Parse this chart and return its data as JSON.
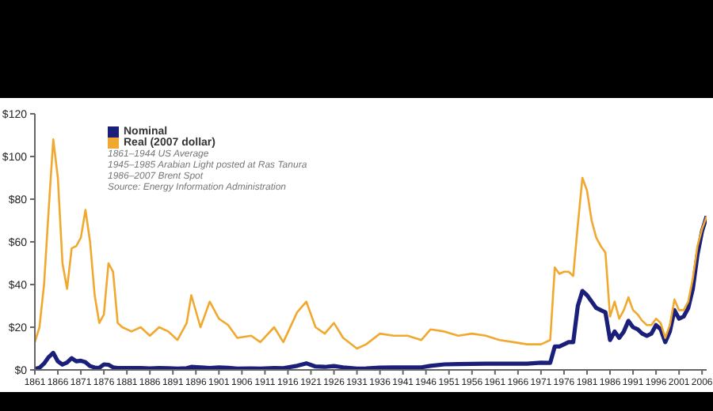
{
  "chart_data": {
    "type": "line",
    "x": [
      1861,
      1862,
      1863,
      1864,
      1865,
      1866,
      1867,
      1868,
      1869,
      1870,
      1871,
      1872,
      1873,
      1874,
      1875,
      1876,
      1877,
      1878,
      1879,
      1880,
      1882,
      1884,
      1886,
      1888,
      1890,
      1892,
      1894,
      1895,
      1897,
      1899,
      1901,
      1903,
      1905,
      1908,
      1910,
      1913,
      1915,
      1918,
      1920,
      1922,
      1924,
      1926,
      1928,
      1931,
      1933,
      1936,
      1939,
      1942,
      1945,
      1947,
      1950,
      1953,
      1956,
      1959,
      1962,
      1965,
      1968,
      1971,
      1973,
      1974,
      1975,
      1976,
      1977,
      1978,
      1979,
      1980,
      1981,
      1982,
      1983,
      1984,
      1985,
      1986,
      1987,
      1988,
      1989,
      1990,
      1991,
      1992,
      1993,
      1994,
      1995,
      1996,
      1997,
      1998,
      1999,
      2000,
      2001,
      2002,
      2003,
      2004,
      2005,
      2006,
      2007
    ],
    "series": [
      {
        "name": "Nominal",
        "color": "#1a1f7a",
        "values": [
          0.5,
          1,
          3,
          6,
          8,
          4,
          2.5,
          3.5,
          5.5,
          4,
          4.3,
          3.6,
          1.8,
          1.1,
          1,
          2.6,
          2.4,
          1.2,
          0.9,
          0.9,
          0.9,
          0.9,
          0.7,
          0.9,
          0.8,
          0.6,
          0.8,
          1.4,
          1.2,
          0.9,
          1.2,
          1,
          0.6,
          0.7,
          0.6,
          0.9,
          0.8,
          1.9,
          3.1,
          1.6,
          1.4,
          1.8,
          1.2,
          0.6,
          0.7,
          1.1,
          1.2,
          1.2,
          1.2,
          1.9,
          2.6,
          2.7,
          2.8,
          2.9,
          2.9,
          2.9,
          2.9,
          3.4,
          3.3,
          11,
          11,
          12,
          13,
          13,
          30,
          37,
          35,
          32,
          29,
          28,
          27,
          14,
          18,
          15,
          18,
          23,
          20,
          19,
          17,
          16,
          17,
          21,
          19,
          13,
          18,
          28,
          24,
          25,
          29,
          38,
          54,
          65,
          72
        ]
      },
      {
        "name": "Real (2007 dollar)",
        "color": "#f0a92e",
        "values": [
          13,
          20,
          40,
          75,
          108,
          90,
          50,
          38,
          57,
          58,
          62,
          75,
          60,
          35,
          22,
          26,
          50,
          46,
          22,
          20,
          18,
          20,
          16,
          20,
          18,
          14,
          22,
          35,
          20,
          32,
          24,
          21,
          15,
          16,
          13,
          20,
          13,
          27,
          32,
          20,
          17,
          22,
          15,
          10,
          12,
          17,
          16,
          16,
          14,
          19,
          18,
          16,
          17,
          16,
          14,
          13,
          12,
          12,
          14,
          48,
          45,
          46,
          46,
          44,
          68,
          90,
          84,
          70,
          62,
          58,
          55,
          25,
          32,
          24,
          28,
          34,
          28,
          26,
          23,
          21,
          21,
          24,
          22,
          15,
          21,
          33,
          28,
          28,
          32,
          43,
          58,
          66,
          72
        ]
      }
    ],
    "xlim": [
      1861,
      2007
    ],
    "xticks": [
      1861,
      1866,
      1871,
      1876,
      1881,
      1886,
      1891,
      1896,
      1901,
      1906,
      1911,
      1916,
      1921,
      1926,
      1931,
      1936,
      1941,
      1946,
      1951,
      1956,
      1961,
      1966,
      1971,
      1976,
      1981,
      1986,
      1991,
      1996,
      2001,
      2006
    ],
    "ylim": [
      0,
      120
    ],
    "yticks": [
      {
        "value": 0,
        "label": "$0"
      },
      {
        "value": 20,
        "label": "$20"
      },
      {
        "value": 40,
        "label": "$40"
      },
      {
        "value": 60,
        "label": "$60"
      },
      {
        "value": 80,
        "label": "$80"
      },
      {
        "value": 100,
        "label": "$100"
      },
      {
        "value": 120,
        "label": "$120"
      }
    ],
    "legend": "top left",
    "grid": false,
    "annotations": [
      "1861–1944 US Average",
      "1945–1985 Arabian Light posted at Ras Tanura",
      "1986–2007 Brent Spot",
      "Source: Energy Information Administration"
    ]
  }
}
